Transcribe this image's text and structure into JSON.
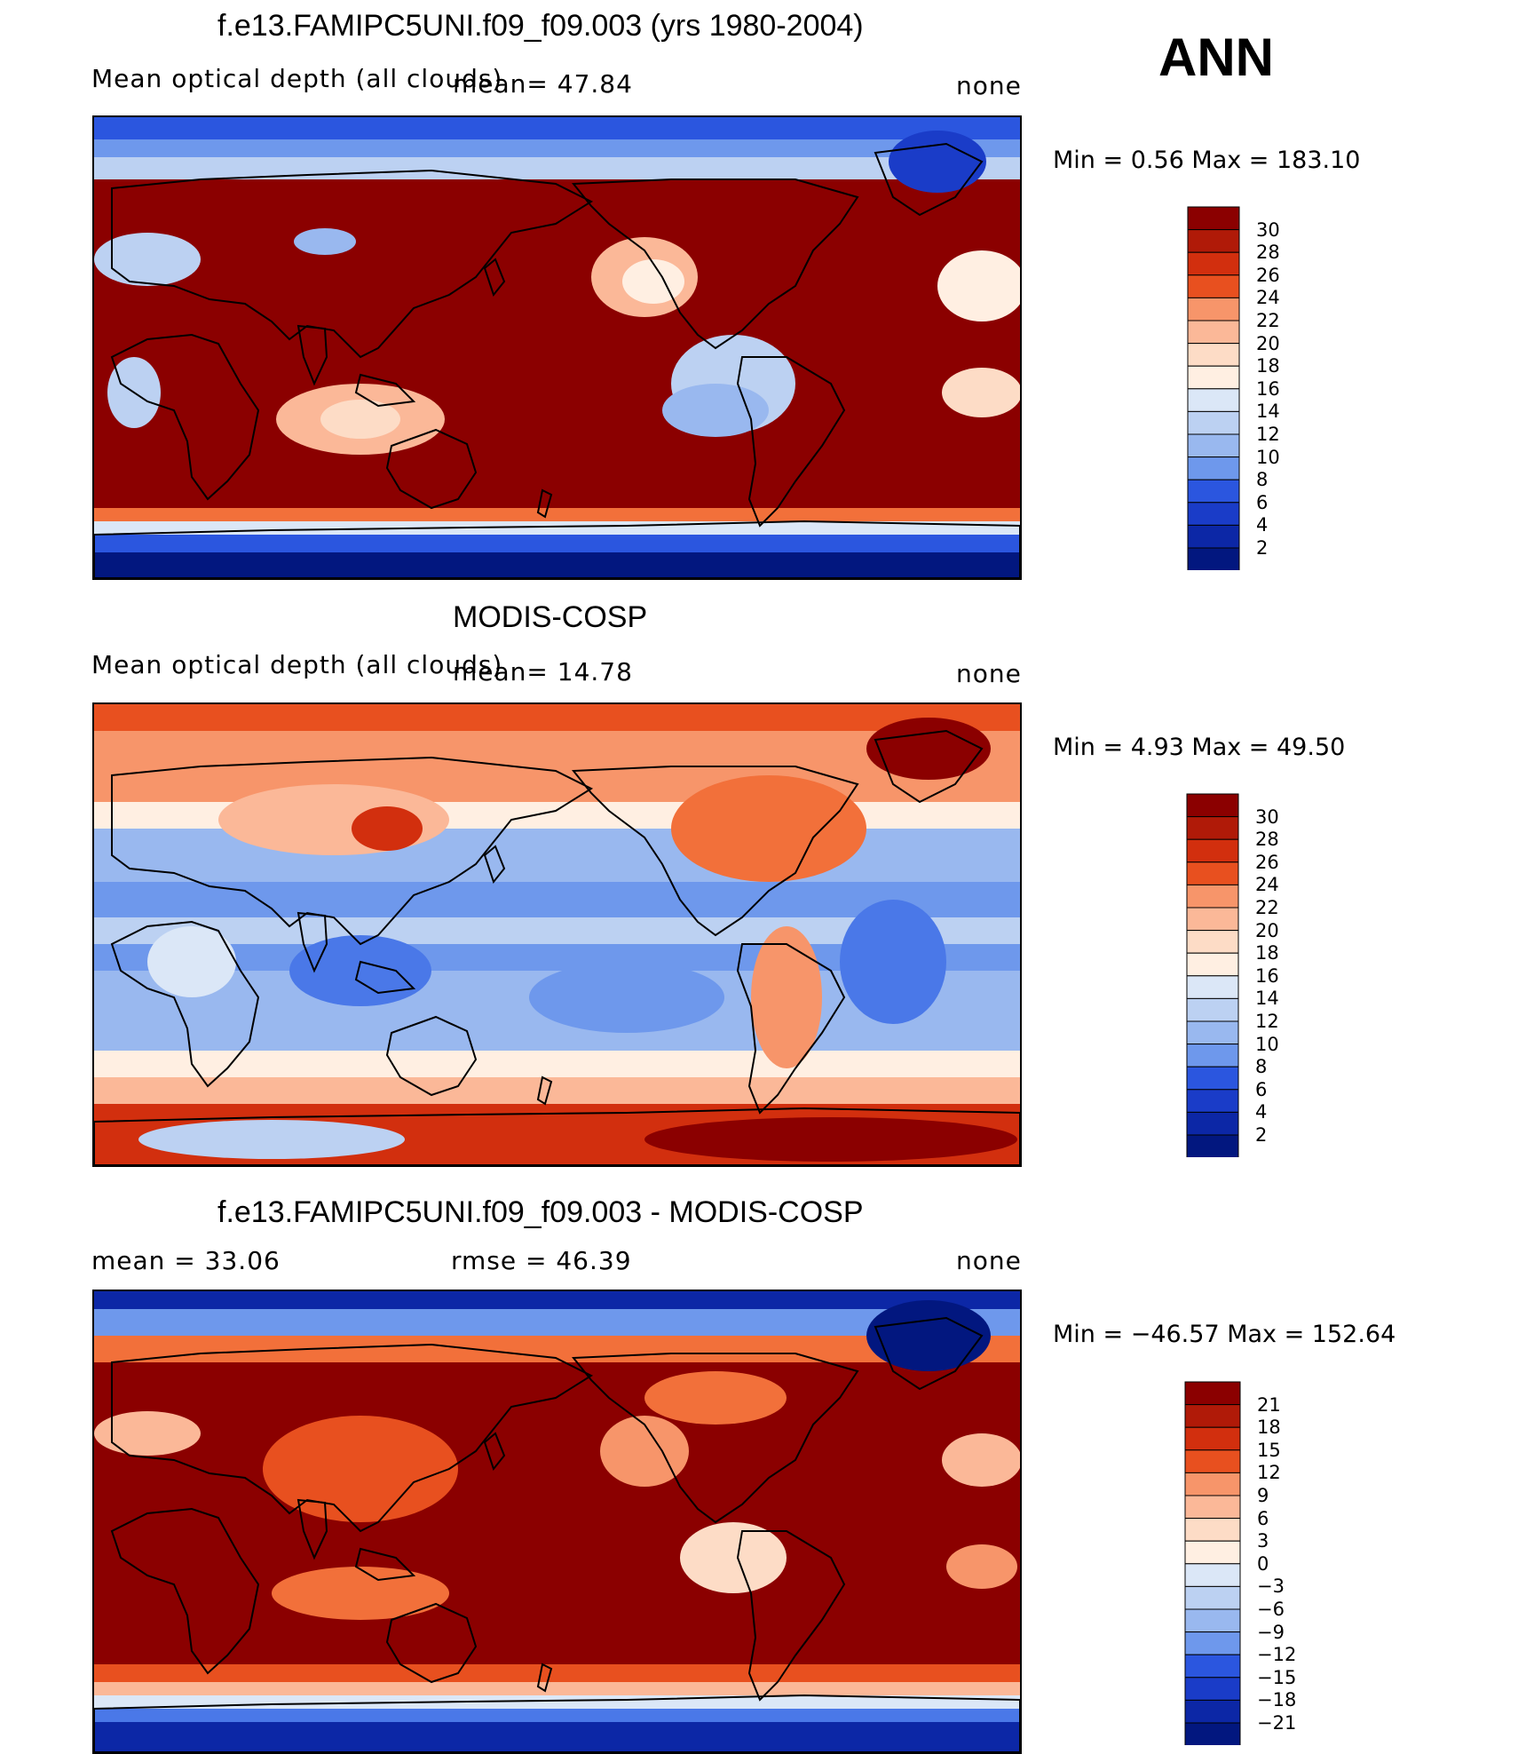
{
  "season": "ANN",
  "panels": [
    {
      "id": "model",
      "title": "f.e13.FAMIPC5UNI.f09_f09.003 (yrs 1980-2004)",
      "left_label": "Mean optical depth (all clouds)",
      "center_label": "mean=   47.84",
      "right_label": "none",
      "minmax": "Min =    0.56 Max = 183.10",
      "cbar_labels": [
        "30",
        "28",
        "26",
        "24",
        "22",
        "20",
        "18",
        "16",
        "14",
        "12",
        "10",
        "8",
        "6",
        "4",
        "2"
      ],
      "pattern": "model"
    },
    {
      "id": "obs",
      "title": "MODIS-COSP",
      "left_label": "Mean optical depth (all clouds)",
      "center_label": "mean=   14.78",
      "right_label": "none",
      "minmax": "Min =    4.93 Max =   49.50",
      "cbar_labels": [
        "30",
        "28",
        "26",
        "24",
        "22",
        "20",
        "18",
        "16",
        "14",
        "12",
        "10",
        "8",
        "6",
        "4",
        "2"
      ],
      "pattern": "obs"
    },
    {
      "id": "diff",
      "title": "f.e13.FAMIPC5UNI.f09_f09.003 - MODIS-COSP",
      "left_label": "mean =   33.06",
      "center_label": "rmse =   46.39",
      "right_label": "none",
      "minmax": "Min = −46.57 Max = 152.64",
      "cbar_labels": [
        "21",
        "18",
        "15",
        "12",
        "9",
        "6",
        "3",
        "0",
        "−3",
        "−6",
        "−9",
        "−12",
        "−15",
        "−18",
        "−21"
      ],
      "pattern": "diff"
    }
  ],
  "colors": {
    "palette": [
      "#8b0000",
      "#b01a08",
      "#d22f0e",
      "#e8501f",
      "#f2703a",
      "#f7956a",
      "#fbb898",
      "#fddcc6",
      "#ffefe2",
      "#dbe7f7",
      "#bcd1f2",
      "#99b8ef",
      "#6e98ec",
      "#4a78e8",
      "#2b56df",
      "#1a3cc8",
      "#0c27a6",
      "#02177f"
    ],
    "land_outline": "#000000"
  }
}
